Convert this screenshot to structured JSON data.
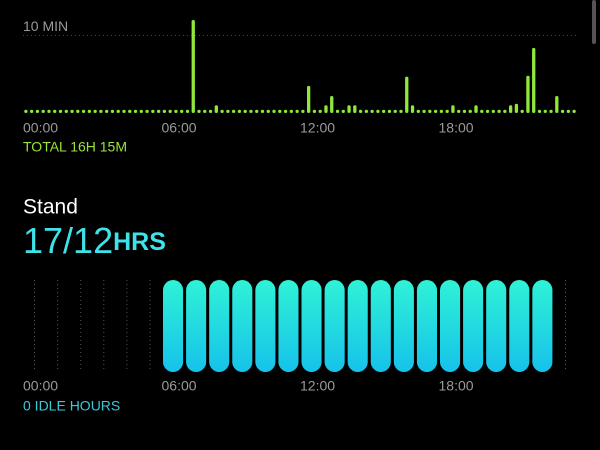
{
  "chart_data": [
    {
      "type": "bar",
      "yticks": [
        {
          "value": 10,
          "label": "10 MIN"
        }
      ],
      "ylim": [
        0,
        12
      ],
      "categories": [
        "00:00",
        null,
        null,
        null,
        null,
        null,
        null,
        null,
        null,
        null,
        null,
        null,
        null,
        null,
        null,
        null,
        null,
        null,
        null,
        null,
        null,
        null,
        null,
        null,
        "06:00",
        null,
        null,
        null,
        null,
        null,
        null,
        null,
        null,
        null,
        null,
        null,
        null,
        null,
        null,
        null,
        null,
        null,
        null,
        null,
        null,
        null,
        null,
        null,
        "12:00",
        null,
        null,
        null,
        null,
        null,
        null,
        null,
        null,
        null,
        null,
        null,
        null,
        null,
        null,
        null,
        null,
        null,
        null,
        null,
        null,
        null,
        null,
        null,
        "18:00",
        null,
        null,
        null,
        null,
        null,
        null,
        null,
        null,
        null,
        null,
        null,
        null,
        null,
        null,
        null,
        null,
        null,
        null,
        null,
        null,
        null,
        null,
        null
      ],
      "values": [
        0,
        0,
        0,
        0,
        0,
        0,
        0,
        0,
        0,
        0,
        0,
        0,
        0,
        0,
        0,
        0,
        0,
        0,
        0,
        0,
        0,
        0,
        0,
        0,
        0,
        0,
        0,
        0,
        0,
        12,
        0,
        0,
        0,
        1,
        0,
        0,
        0,
        0,
        0,
        0,
        0,
        0,
        0,
        0,
        0,
        0,
        0,
        0,
        0,
        3.5,
        0,
        0,
        1,
        2.2,
        0,
        0,
        1,
        1,
        0,
        0,
        0,
        0,
        0,
        0,
        0,
        0,
        4.7,
        1,
        0,
        0,
        0,
        0,
        0,
        0,
        1,
        0,
        0,
        0,
        1,
        0,
        0,
        0,
        0,
        0,
        1,
        1.2,
        0,
        4.8,
        8.4,
        0,
        0,
        0,
        2.2,
        0,
        0,
        0
      ],
      "color": "#8fe83a",
      "grid": true,
      "footer": "TOTAL 16H 15M"
    },
    {
      "type": "stand",
      "title": "Stand",
      "value_text": "17/12",
      "unit": "HRS",
      "categories": [
        "00:00",
        null,
        null,
        null,
        null,
        null,
        "06:00",
        null,
        null,
        null,
        null,
        null,
        "12:00",
        null,
        null,
        null,
        null,
        null,
        "18:00",
        null,
        null,
        null,
        null,
        null
      ],
      "values": [
        0,
        0,
        0,
        0,
        0,
        0,
        1,
        1,
        1,
        1,
        1,
        1,
        1,
        1,
        1,
        1,
        1,
        1,
        1,
        1,
        1,
        1,
        1,
        0
      ],
      "ylim": [
        0,
        1
      ],
      "color": "#22dcdc",
      "footer": "0 IDLE HOURS"
    }
  ]
}
